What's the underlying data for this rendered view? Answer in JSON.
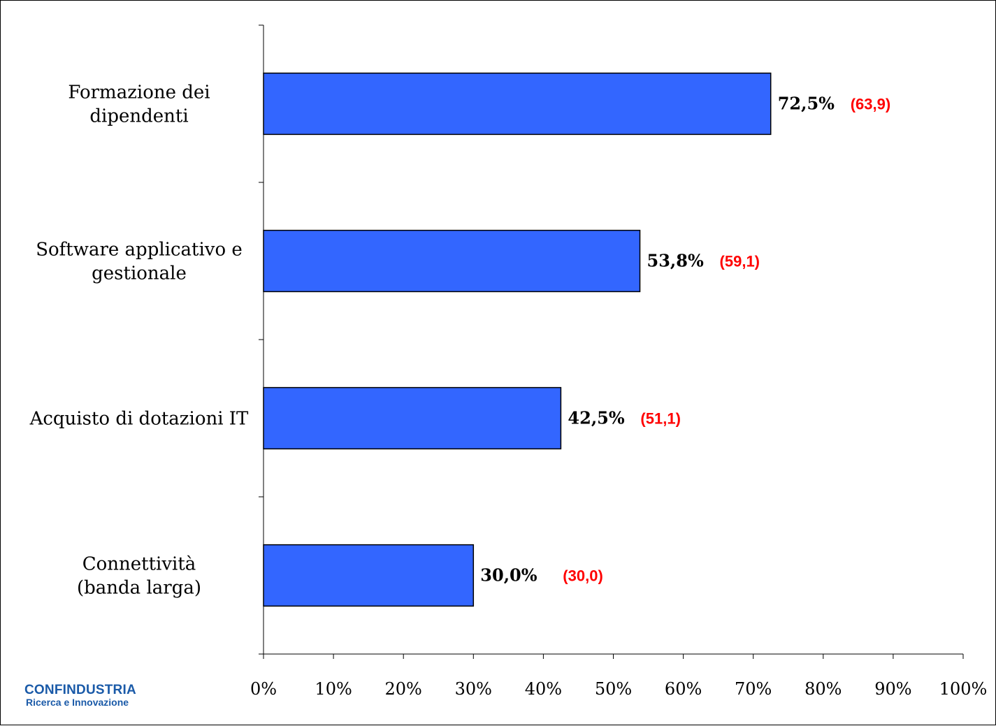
{
  "logo": {
    "name": "CONFINDUSTRIA",
    "subtitle": "Ricerca e Innovazione"
  },
  "chart_data": {
    "type": "bar",
    "orientation": "horizontal",
    "categories": [
      [
        "Formazione dei",
        "dipendenti"
      ],
      [
        "Software applicativo e",
        "gestionale"
      ],
      [
        "Acquisto di dotazioni IT"
      ],
      [
        "Connettività",
        "(banda larga)"
      ]
    ],
    "series": [
      {
        "values": [
          72.5,
          53.8,
          42.5,
          30.0
        ],
        "labels": [
          "72,5%",
          "53,8%",
          "42,5%",
          "30,0%"
        ],
        "previous_labels": [
          "(63,9)",
          "(59,1)",
          "(51,1)",
          "(30,0)"
        ]
      }
    ],
    "xlim": [
      0,
      100
    ],
    "xticks": [
      0,
      10,
      20,
      30,
      40,
      50,
      60,
      70,
      80,
      90,
      100
    ],
    "xtick_labels": [
      "0%",
      "10%",
      "20%",
      "30%",
      "40%",
      "50%",
      "60%",
      "70%",
      "80%",
      "90%",
      "100%"
    ],
    "grid": false,
    "colors": {
      "bar": "#3366ff",
      "bar_outline": "#000000",
      "previous_label": "#ff0000"
    }
  }
}
